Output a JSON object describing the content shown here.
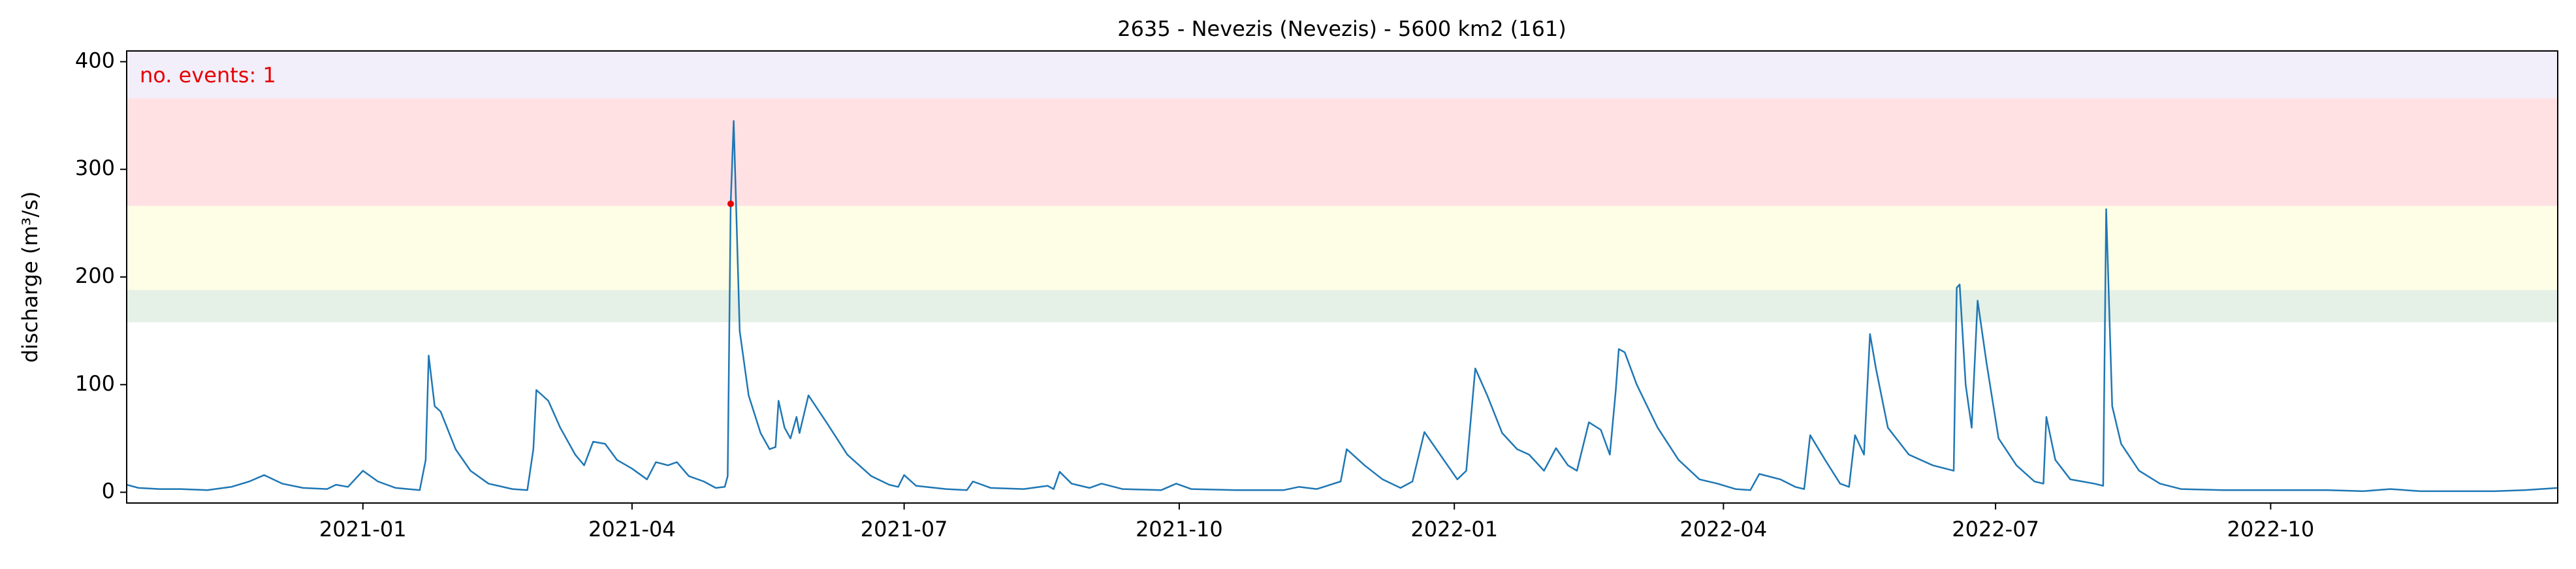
{
  "chart_data": {
    "type": "line",
    "title": "2635 - Nevezis (Nevezis) - 5600 km2 (161)",
    "ylabel": "discharge (m³/s)",
    "annotation": "no. events: 1",
    "annotation_color": "#e60000",
    "xlim": [
      "2020-10-14",
      "2023-01-05"
    ],
    "xticks": [
      "2021-01",
      "2021-04",
      "2021-07",
      "2021-10",
      "2022-01",
      "2022-04",
      "2022-07",
      "2022-10"
    ],
    "ylim": [
      -10,
      410
    ],
    "yticks": [
      0,
      100,
      200,
      300,
      400
    ],
    "bands": [
      {
        "from": 158,
        "to": 188,
        "color": "#e5f0e6"
      },
      {
        "from": 188,
        "to": 266,
        "color": "#fefee6"
      },
      {
        "from": 266,
        "to": 366,
        "color": "#ffe1e4"
      },
      {
        "from": 366,
        "to": 410,
        "color": "#f2eefa"
      }
    ],
    "events": {
      "x": [
        "2021-05-04"
      ],
      "values": [
        268
      ],
      "color": "#e60000"
    },
    "x": [
      "2020-10-14",
      "2020-10-18",
      "2020-10-25",
      "2020-11-01",
      "2020-11-10",
      "2020-11-18",
      "2020-11-24",
      "2020-11-29",
      "2020-12-05",
      "2020-12-12",
      "2020-12-20",
      "2020-12-23",
      "2020-12-27",
      "2021-01-01",
      "2021-01-06",
      "2021-01-12",
      "2021-01-20",
      "2021-01-22",
      "2021-01-23",
      "2021-01-25",
      "2021-01-27",
      "2021-02-01",
      "2021-02-06",
      "2021-02-12",
      "2021-02-20",
      "2021-02-25",
      "2021-02-27",
      "2021-02-28",
      "2021-03-04",
      "2021-03-08",
      "2021-03-13",
      "2021-03-16",
      "2021-03-19",
      "2021-03-23",
      "2021-03-27",
      "2021-04-01",
      "2021-04-06",
      "2021-04-09",
      "2021-04-13",
      "2021-04-16",
      "2021-04-20",
      "2021-04-25",
      "2021-04-29",
      "2021-05-02",
      "2021-05-03",
      "2021-05-04",
      "2021-05-05",
      "2021-05-07",
      "2021-05-10",
      "2021-05-14",
      "2021-05-17",
      "2021-05-19",
      "2021-05-20",
      "2021-05-22",
      "2021-05-24",
      "2021-05-26",
      "2021-05-27",
      "2021-05-30",
      "2021-06-05",
      "2021-06-12",
      "2021-06-20",
      "2021-06-26",
      "2021-06-29",
      "2021-07-01",
      "2021-07-05",
      "2021-07-15",
      "2021-07-22",
      "2021-07-24",
      "2021-07-30",
      "2021-08-10",
      "2021-08-18",
      "2021-08-20",
      "2021-08-22",
      "2021-08-26",
      "2021-09-01",
      "2021-09-05",
      "2021-09-12",
      "2021-09-25",
      "2021-09-30",
      "2021-10-05",
      "2021-10-20",
      "2021-11-05",
      "2021-11-10",
      "2021-11-16",
      "2021-11-24",
      "2021-11-26",
      "2021-12-02",
      "2021-12-08",
      "2021-12-14",
      "2021-12-18",
      "2021-12-22",
      "2021-12-26",
      "2022-01-02",
      "2022-01-05",
      "2022-01-08",
      "2022-01-12",
      "2022-01-17",
      "2022-01-22",
      "2022-01-26",
      "2022-01-31",
      "2022-02-04",
      "2022-02-08",
      "2022-02-11",
      "2022-02-15",
      "2022-02-19",
      "2022-02-22",
      "2022-02-24",
      "2022-02-25",
      "2022-02-27",
      "2022-03-03",
      "2022-03-10",
      "2022-03-17",
      "2022-03-24",
      "2022-03-30",
      "2022-04-05",
      "2022-04-10",
      "2022-04-13",
      "2022-04-20",
      "2022-04-25",
      "2022-04-28",
      "2022-04-30",
      "2022-05-05",
      "2022-05-10",
      "2022-05-13",
      "2022-05-15",
      "2022-05-18",
      "2022-05-20",
      "2022-05-22",
      "2022-05-26",
      "2022-06-02",
      "2022-06-10",
      "2022-06-17",
      "2022-06-18",
      "2022-06-19",
      "2022-06-21",
      "2022-06-23",
      "2022-06-25",
      "2022-06-28",
      "2022-07-02",
      "2022-07-08",
      "2022-07-14",
      "2022-07-17",
      "2022-07-18",
      "2022-07-21",
      "2022-07-26",
      "2022-08-03",
      "2022-08-06",
      "2022-08-07",
      "2022-08-09",
      "2022-08-12",
      "2022-08-18",
      "2022-08-25",
      "2022-09-01",
      "2022-09-15",
      "2022-10-01",
      "2022-10-20",
      "2022-11-01",
      "2022-11-10",
      "2022-11-20",
      "2022-12-15",
      "2022-12-25",
      "2023-01-05"
    ],
    "series": [
      {
        "name": "discharge",
        "color": "#1f77b4",
        "values": [
          7,
          4,
          3,
          3,
          2,
          5,
          10,
          16,
          8,
          4,
          3,
          7,
          5,
          20,
          10,
          4,
          2,
          30,
          127,
          80,
          75,
          40,
          20,
          8,
          3,
          2,
          40,
          95,
          85,
          60,
          35,
          25,
          47,
          45,
          30,
          22,
          12,
          28,
          25,
          28,
          15,
          10,
          4,
          5,
          15,
          268,
          345,
          150,
          90,
          55,
          40,
          42,
          85,
          60,
          50,
          70,
          55,
          90,
          65,
          35,
          15,
          7,
          5,
          16,
          6,
          3,
          2,
          10,
          4,
          3,
          6,
          3,
          19,
          8,
          4,
          8,
          3,
          2,
          8,
          3,
          2,
          2,
          5,
          3,
          10,
          40,
          25,
          12,
          4,
          10,
          56,
          40,
          12,
          20,
          115,
          90,
          55,
          40,
          35,
          20,
          41,
          25,
          20,
          65,
          58,
          35,
          95,
          133,
          130,
          100,
          60,
          30,
          12,
          8,
          3,
          2,
          17,
          12,
          5,
          3,
          53,
          30,
          8,
          5,
          53,
          35,
          147,
          115,
          60,
          35,
          25,
          20,
          190,
          193,
          100,
          60,
          178,
          120,
          50,
          25,
          10,
          8,
          70,
          30,
          12,
          8,
          6,
          263,
          80,
          45,
          20,
          8,
          3,
          2,
          2,
          2,
          1,
          3,
          1,
          1,
          2,
          4
        ]
      }
    ]
  }
}
